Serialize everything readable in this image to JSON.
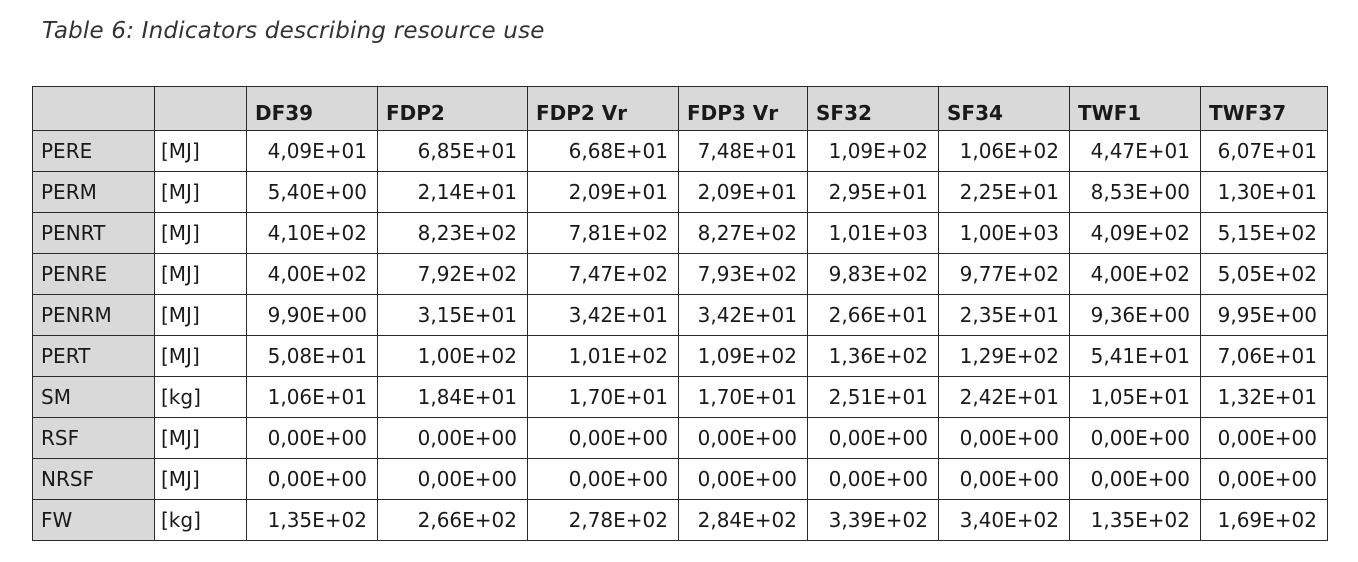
{
  "caption": "Table 6: Indicators describing resource use",
  "table": {
    "columns": [
      "",
      "",
      "DF39",
      "FDP2",
      "FDP2 Vr",
      "FDP3 Vr",
      "SF32",
      "SF34",
      "TWF1",
      "TWF37"
    ],
    "rows": [
      {
        "indicator": "PERE",
        "unit": "[MJ]",
        "values": [
          "4,09E+01",
          "6,85E+01",
          "6,68E+01",
          "7,48E+01",
          "1,09E+02",
          "1,06E+02",
          "4,47E+01",
          "6,07E+01"
        ]
      },
      {
        "indicator": "PERM",
        "unit": "[MJ]",
        "values": [
          "5,40E+00",
          "2,14E+01",
          "2,09E+01",
          "2,09E+01",
          "2,95E+01",
          "2,25E+01",
          "8,53E+00",
          "1,30E+01"
        ]
      },
      {
        "indicator": "PENRT",
        "unit": "[MJ]",
        "values": [
          "4,10E+02",
          "8,23E+02",
          "7,81E+02",
          "8,27E+02",
          "1,01E+03",
          "1,00E+03",
          "4,09E+02",
          "5,15E+02"
        ]
      },
      {
        "indicator": "PENRE",
        "unit": "[MJ]",
        "values": [
          "4,00E+02",
          "7,92E+02",
          "7,47E+02",
          "7,93E+02",
          "9,83E+02",
          "9,77E+02",
          "4,00E+02",
          "5,05E+02"
        ]
      },
      {
        "indicator": "PENRM",
        "unit": "[MJ]",
        "values": [
          "9,90E+00",
          "3,15E+01",
          "3,42E+01",
          "3,42E+01",
          "2,66E+01",
          "2,35E+01",
          "9,36E+00",
          "9,95E+00"
        ]
      },
      {
        "indicator": "PERT",
        "unit": "[MJ]",
        "values": [
          "5,08E+01",
          "1,00E+02",
          "1,01E+02",
          "1,09E+02",
          "1,36E+02",
          "1,29E+02",
          "5,41E+01",
          "7,06E+01"
        ]
      },
      {
        "indicator": "SM",
        "unit": "[kg]",
        "values": [
          "1,06E+01",
          "1,84E+01",
          "1,70E+01",
          "1,70E+01",
          "2,51E+01",
          "2,42E+01",
          "1,05E+01",
          "1,32E+01"
        ]
      },
      {
        "indicator": "RSF",
        "unit": "[MJ]",
        "values": [
          "0,00E+00",
          "0,00E+00",
          "0,00E+00",
          "0,00E+00",
          "0,00E+00",
          "0,00E+00",
          "0,00E+00",
          "0,00E+00"
        ]
      },
      {
        "indicator": "NRSF",
        "unit": "[MJ]",
        "values": [
          "0,00E+00",
          "0,00E+00",
          "0,00E+00",
          "0,00E+00",
          "0,00E+00",
          "0,00E+00",
          "0,00E+00",
          "0,00E+00"
        ]
      },
      {
        "indicator": "FW",
        "unit": "[kg]",
        "values": [
          "1,35E+02",
          "2,66E+02",
          "2,78E+02",
          "2,84E+02",
          "3,39E+02",
          "3,40E+02",
          "1,35E+02",
          "1,69E+02"
        ]
      }
    ]
  }
}
